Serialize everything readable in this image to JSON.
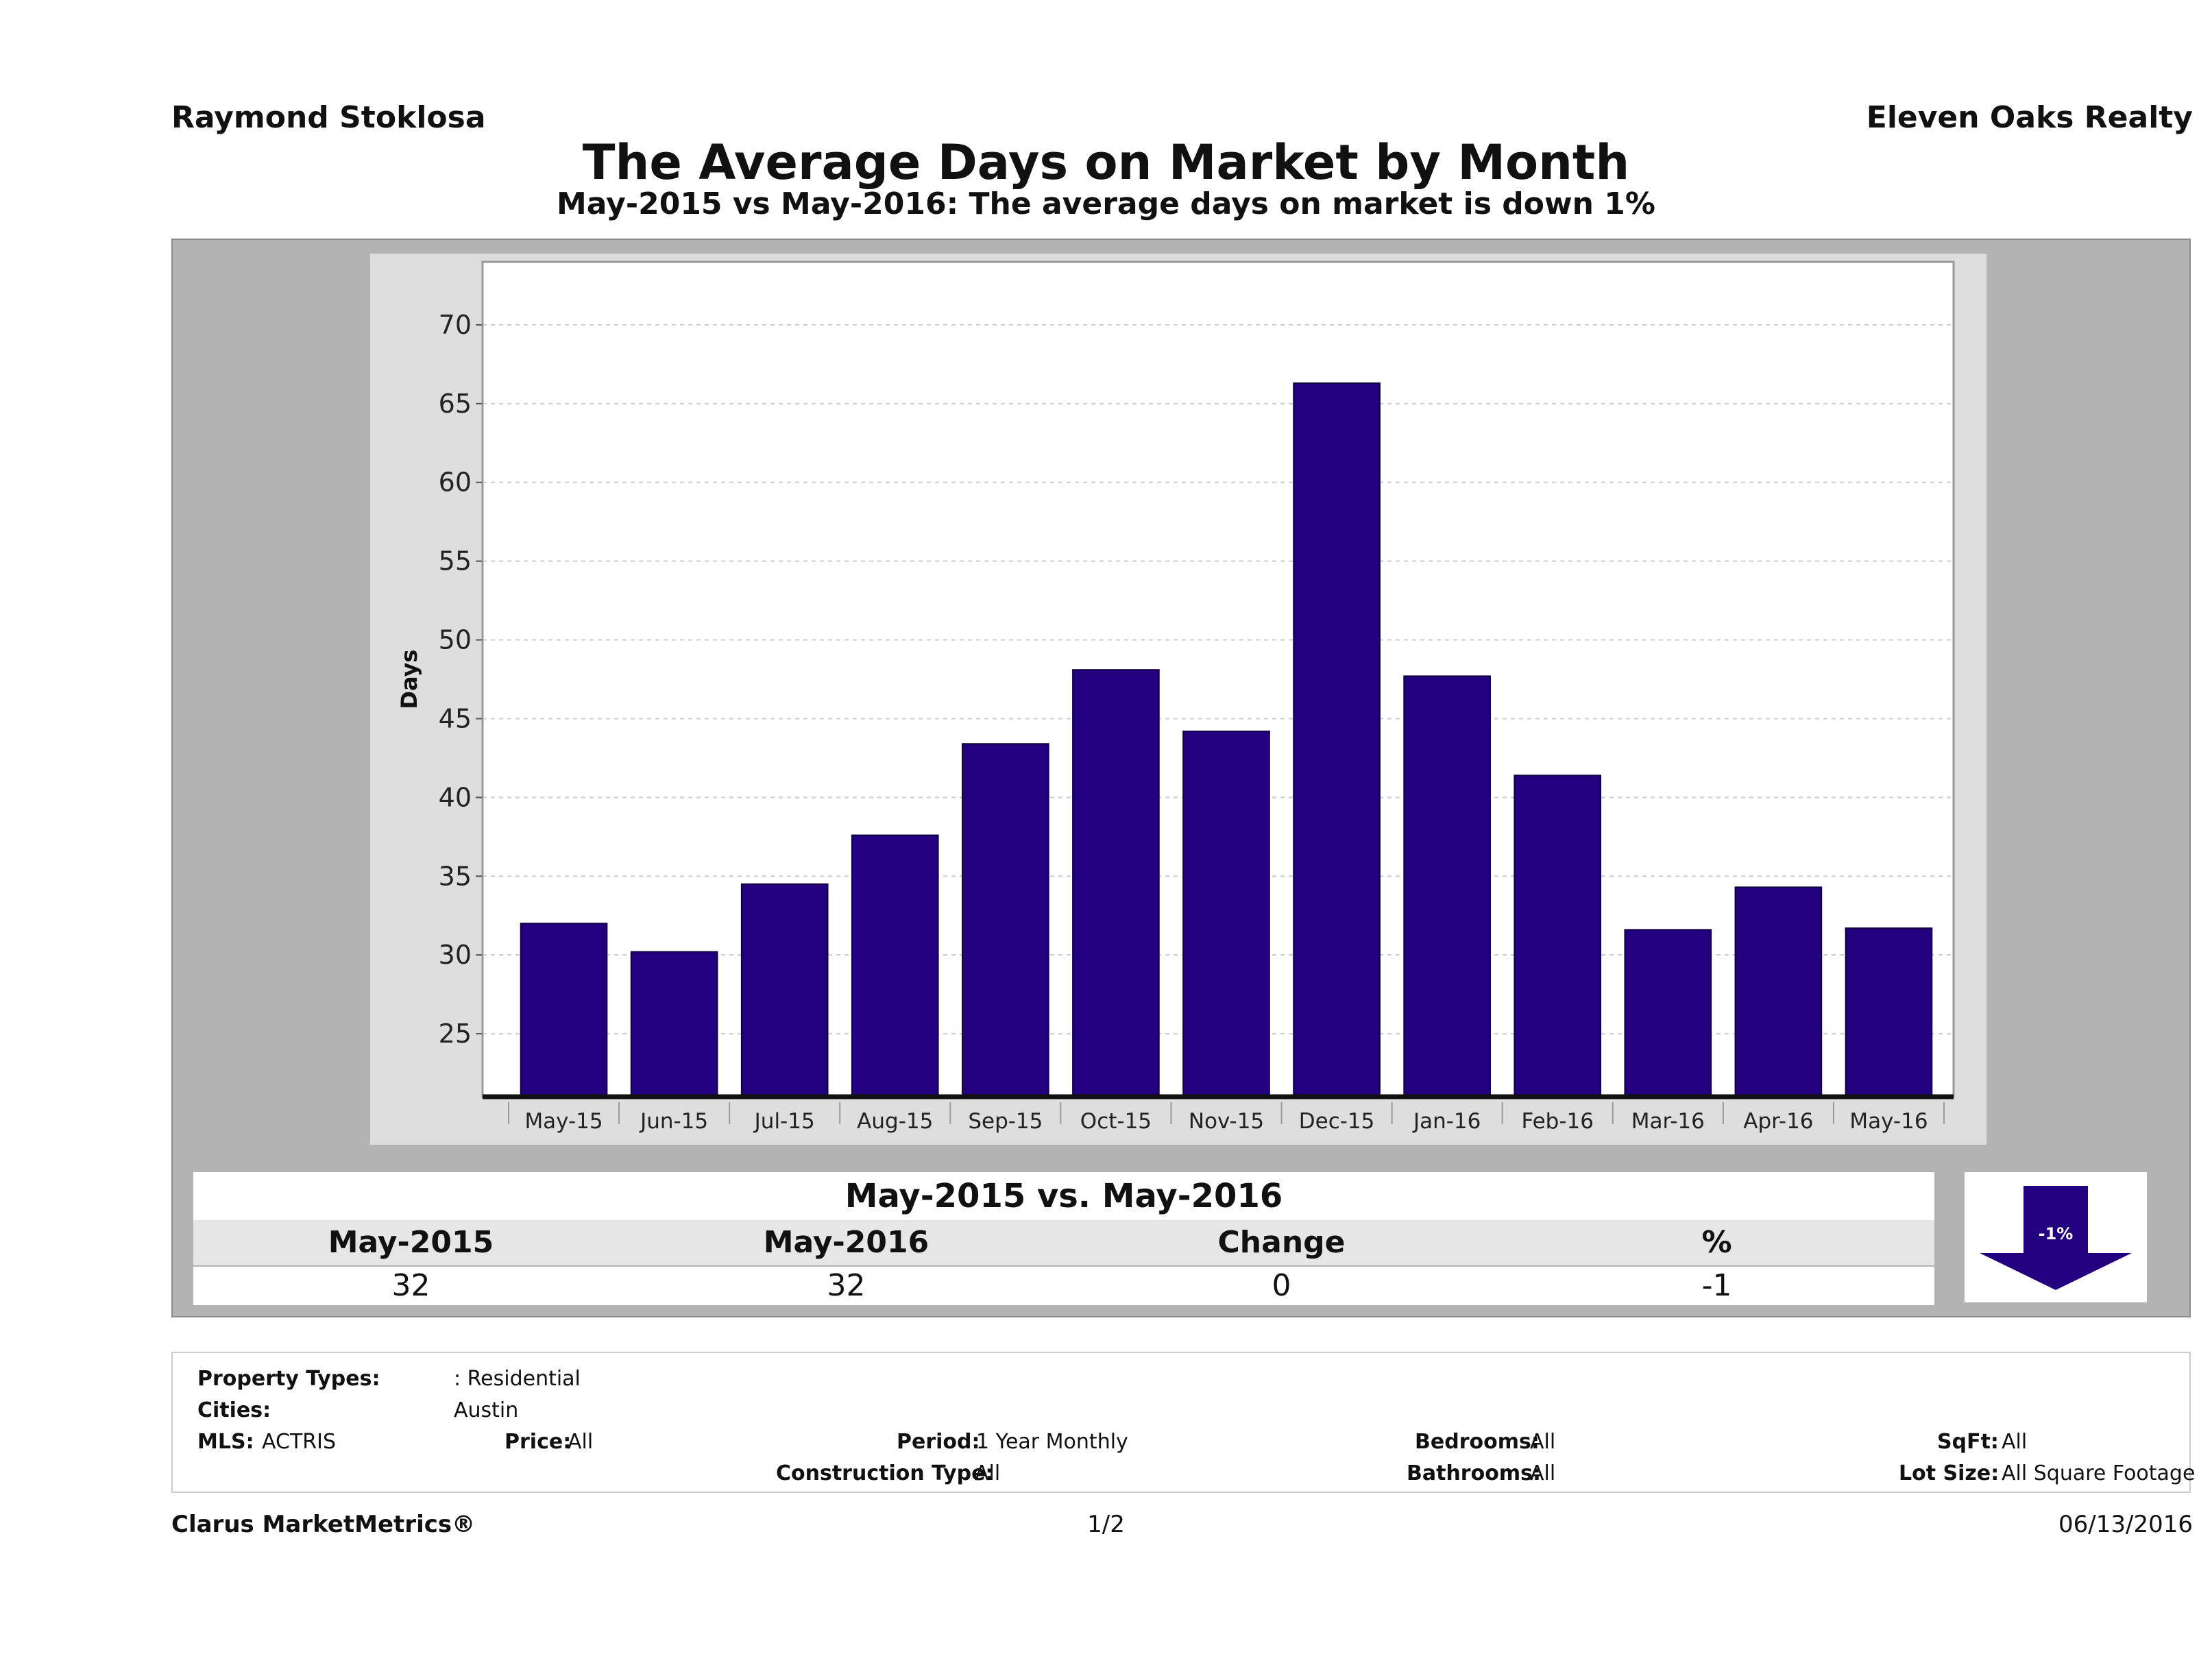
{
  "header": {
    "agent_name": "Raymond Stoklosa",
    "company_name": "Eleven Oaks Realty",
    "title": "The Average Days on Market by Month",
    "subtitle": "May-2015 vs May-2016: The average days on market is down 1%"
  },
  "chart_data": {
    "type": "bar",
    "title": "The Average Days on Market by Month",
    "xlabel": "",
    "ylabel": "Days",
    "categories": [
      "May-15",
      "Jun-15",
      "Jul-15",
      "Aug-15",
      "Sep-15",
      "Oct-15",
      "Nov-15",
      "Dec-15",
      "Jan-16",
      "Feb-16",
      "Mar-16",
      "Apr-16",
      "May-16"
    ],
    "values": [
      32,
      30.2,
      34.5,
      37.6,
      43.4,
      48.1,
      44.2,
      66.3,
      47.7,
      41.4,
      31.6,
      34.3,
      31.7
    ],
    "ylim": [
      21,
      74
    ],
    "yticks": [
      25,
      30,
      35,
      40,
      45,
      50,
      55,
      60,
      65,
      70
    ],
    "grid": true,
    "bar_color": "#22007f"
  },
  "comparison": {
    "title": "May-2015 vs. May-2016",
    "headers": [
      "May-2015",
      "May-2016",
      "Change",
      "%"
    ],
    "values": [
      "32",
      "32",
      "0",
      "-1"
    ],
    "arrow_label": "-1%",
    "arrow_color": "#22007f",
    "arrow_direction": "down"
  },
  "filters": {
    "property_types_label": "Property Types:",
    "property_types_value": ": Residential",
    "cities_label": "Cities:",
    "cities_value": "Austin",
    "mls_label": "MLS:",
    "mls_value": "ACTRIS",
    "price_label": "Price:",
    "price_value": "All",
    "period_label": "Period:",
    "period_value": "1 Year Monthly",
    "construction_label": "Construction Type:",
    "construction_value": "All",
    "bedrooms_label": "Bedrooms:",
    "bedrooms_value": "All",
    "bathrooms_label": "Bathrooms:",
    "bathrooms_value": "All",
    "sqft_label": "SqFt:",
    "sqft_value": "All",
    "lot_label": "Lot Size:",
    "lot_value": "All Square Footage"
  },
  "footer": {
    "brand": "Clarus MarketMetrics®",
    "page": "1/2",
    "date": "06/13/2016"
  }
}
